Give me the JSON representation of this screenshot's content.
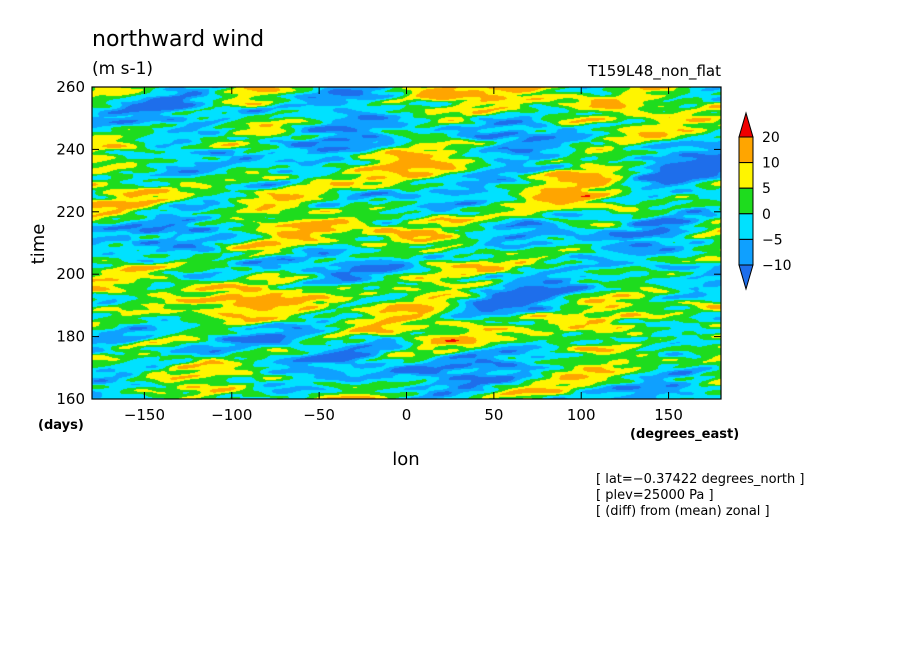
{
  "chart_data": {
    "type": "heatmap",
    "title": "northward wind",
    "units": "(m s-1)",
    "run_label": "T159L48_non_flat",
    "xlabel": "lon",
    "x_unit": "(degrees_east)",
    "ylabel": "time",
    "y_unit": "(days)",
    "xlim": [
      -180,
      180
    ],
    "ylim": [
      160,
      260
    ],
    "x_ticks": [
      -150,
      -100,
      -50,
      0,
      50,
      100,
      150
    ],
    "x_tick_labels": [
      "−150",
      "−100",
      "−50",
      "0",
      "50",
      "100",
      "150"
    ],
    "y_ticks": [
      160,
      180,
      200,
      220,
      240,
      260
    ],
    "y_tick_labels": [
      "160",
      "180",
      "200",
      "220",
      "240",
      "260"
    ],
    "annotations": [
      "[ lat=−0.37422 degrees_north ]",
      "[ plev=25000 Pa ]",
      "[ (diff) from (mean) zonal ]"
    ],
    "levels": [
      -10,
      -5,
      0,
      5,
      10,
      20
    ],
    "level_labels": [
      "−10",
      "−5",
      "0",
      "5",
      "10",
      "20"
    ],
    "colors": [
      "#1E6EEB",
      "#0FA0FF",
      "#00E1FF",
      "#1EDC1E",
      "#FFF500",
      "#FFA500",
      "#F00000"
    ],
    "colorbar_extend": "both"
  }
}
